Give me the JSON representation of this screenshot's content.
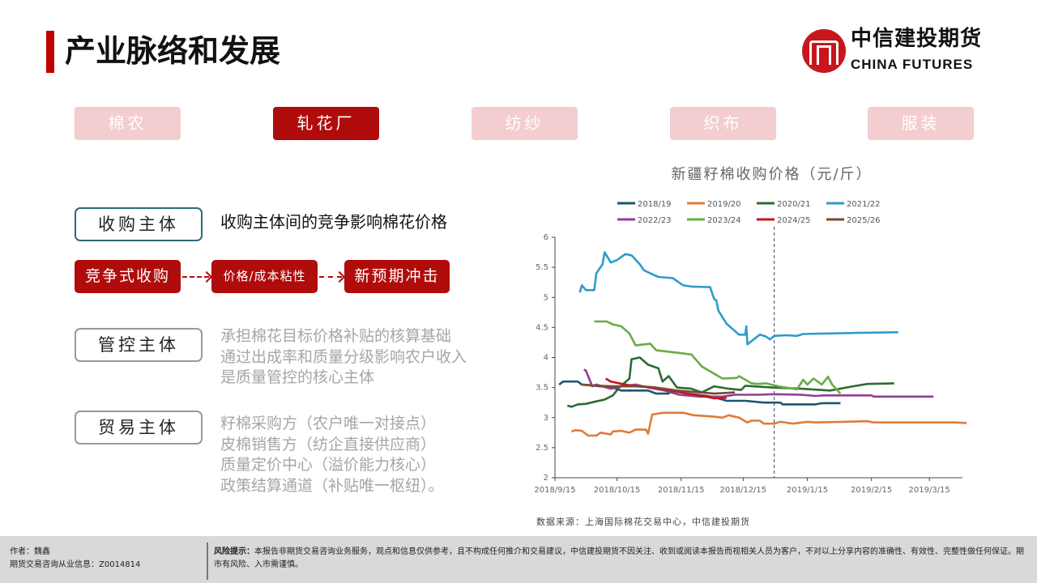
{
  "header": {
    "title": "产业脉络和发展",
    "logo_cn": "中信建投期货",
    "logo_en": "CHINA FUTURES"
  },
  "tabs": [
    {
      "label": "棉农",
      "active": false
    },
    {
      "label": "轧花厂",
      "active": true
    },
    {
      "label": "纺纱",
      "active": false
    },
    {
      "label": "织布",
      "active": false
    },
    {
      "label": "服装",
      "active": false
    }
  ],
  "entities": [
    {
      "label": "收购主体",
      "lines": [
        "收购主体间的竞争影响棉花价格"
      ]
    },
    {
      "label": "管控主体",
      "lines": [
        "承担棉花目标价格补贴的核算基础",
        "通过出成率和质量分级影响农户收入",
        "是质量管控的核心主体"
      ]
    },
    {
      "label": "贸易主体",
      "lines": [
        "籽棉采购方（农户唯一对接点）",
        "皮棉销售方（纺企直接供应商）",
        "质量定价中心（溢价能力核心）",
        "政策结算通道（补贴唯一枢纽）。"
      ]
    }
  ],
  "flow": [
    "竞争式收购",
    "价格/成本粘性",
    "新预期冲击"
  ],
  "colors": {
    "accent": "#b00c0c",
    "tab_inactive": "#f3cdd0"
  },
  "chart_data": {
    "type": "line",
    "title": "新疆籽棉收购价格（元/斤）",
    "xlabel": "",
    "ylabel": "",
    "x_unit": "days since 2018/9/15",
    "xlim": [
      0,
      197
    ],
    "ylim": [
      2,
      6
    ],
    "yticks": [
      "2",
      "2.5",
      "3",
      "3.5",
      "4",
      "4.5",
      "5",
      "5.5",
      "6"
    ],
    "xticks": [
      {
        "day": 0,
        "label": "2018/9/15"
      },
      {
        "day": 30,
        "label": "2018/10/15"
      },
      {
        "day": 61,
        "label": "2018/11/15"
      },
      {
        "day": 91,
        "label": "2018/12/15"
      },
      {
        "day": 122,
        "label": "2019/1/15"
      },
      {
        "day": 153,
        "label": "2019/2/15"
      },
      {
        "day": 181,
        "label": "2019/3/15"
      }
    ],
    "reference_line_day": 106,
    "legend_position": "top",
    "series": [
      {
        "name": "2018/19",
        "color": "#1f5570",
        "points": [
          [
            2,
            3.55
          ],
          [
            4,
            3.6
          ],
          [
            11,
            3.6
          ],
          [
            13,
            3.55
          ],
          [
            28,
            3.5
          ],
          [
            32,
            3.45
          ],
          [
            45,
            3.45
          ],
          [
            49,
            3.4
          ],
          [
            55,
            3.4
          ],
          [
            56,
            3.45
          ],
          [
            64,
            3.4
          ],
          [
            76,
            3.35
          ],
          [
            83,
            3.28
          ],
          [
            92,
            3.28
          ],
          [
            101,
            3.25
          ],
          [
            109,
            3.25
          ],
          [
            110,
            3.22
          ],
          [
            126,
            3.22
          ],
          [
            129,
            3.24
          ],
          [
            138,
            3.24
          ]
        ]
      },
      {
        "name": "2019/20",
        "color": "#e07b39",
        "points": [
          [
            8,
            2.77
          ],
          [
            10,
            2.79
          ],
          [
            13,
            2.78
          ],
          [
            16,
            2.7
          ],
          [
            20,
            2.7
          ],
          [
            22,
            2.75
          ],
          [
            27,
            2.72
          ],
          [
            28,
            2.77
          ],
          [
            32,
            2.78
          ],
          [
            36,
            2.75
          ],
          [
            39,
            2.8
          ],
          [
            44,
            2.8
          ],
          [
            45,
            2.73
          ],
          [
            47,
            3.05
          ],
          [
            52,
            3.08
          ],
          [
            62,
            3.08
          ],
          [
            67,
            3.04
          ],
          [
            76,
            3.02
          ],
          [
            81,
            3.0
          ],
          [
            84,
            3.04
          ],
          [
            89,
            3.0
          ],
          [
            93,
            2.92
          ],
          [
            95,
            2.95
          ],
          [
            99,
            2.95
          ],
          [
            101,
            2.9
          ],
          [
            106,
            2.9
          ],
          [
            109,
            2.93
          ],
          [
            115,
            2.9
          ],
          [
            122,
            2.93
          ],
          [
            126,
            2.92
          ],
          [
            140,
            2.93
          ],
          [
            151,
            2.94
          ],
          [
            154,
            2.92
          ],
          [
            182,
            2.92
          ],
          [
            193,
            2.92
          ],
          [
            199,
            2.91
          ]
        ]
      },
      {
        "name": "2020/21",
        "color": "#2e6b34",
        "points": [
          [
            6,
            3.2
          ],
          [
            8,
            3.18
          ],
          [
            11,
            3.22
          ],
          [
            15,
            3.23
          ],
          [
            20,
            3.27
          ],
          [
            24,
            3.3
          ],
          [
            28,
            3.37
          ],
          [
            31,
            3.5
          ],
          [
            36,
            3.65
          ],
          [
            37,
            3.97
          ],
          [
            41,
            4.0
          ],
          [
            45,
            3.88
          ],
          [
            50,
            3.82
          ],
          [
            52,
            3.6
          ],
          [
            55,
            3.69
          ],
          [
            59,
            3.5
          ],
          [
            66,
            3.48
          ],
          [
            71,
            3.42
          ],
          [
            77,
            3.52
          ],
          [
            84,
            3.48
          ],
          [
            90,
            3.46
          ],
          [
            92,
            3.53
          ],
          [
            105,
            3.5
          ],
          [
            119,
            3.48
          ],
          [
            133,
            3.45
          ],
          [
            144,
            3.52
          ],
          [
            151,
            3.56
          ],
          [
            164,
            3.57
          ]
        ]
      },
      {
        "name": "2021/22",
        "color": "#2e9ccb",
        "points": [
          [
            12,
            5.08
          ],
          [
            13,
            5.2
          ],
          [
            15,
            5.12
          ],
          [
            19,
            5.12
          ],
          [
            20,
            5.4
          ],
          [
            23,
            5.55
          ],
          [
            24,
            5.75
          ],
          [
            27,
            5.58
          ],
          [
            30,
            5.62
          ],
          [
            34,
            5.72
          ],
          [
            37,
            5.7
          ],
          [
            41,
            5.55
          ],
          [
            43,
            5.45
          ],
          [
            48,
            5.37
          ],
          [
            50,
            5.34
          ],
          [
            57,
            5.32
          ],
          [
            62,
            5.2
          ],
          [
            66,
            5.18
          ],
          [
            75,
            5.17
          ],
          [
            77,
            4.97
          ],
          [
            78,
            4.95
          ],
          [
            79,
            4.78
          ],
          [
            83,
            4.56
          ],
          [
            85,
            4.5
          ],
          [
            89,
            4.38
          ],
          [
            92,
            4.38
          ],
          [
            92.5,
            4.52
          ],
          [
            93,
            4.22
          ],
          [
            99,
            4.38
          ],
          [
            102,
            4.35
          ],
          [
            104,
            4.3
          ],
          [
            106,
            4.36
          ],
          [
            112,
            4.37
          ],
          [
            117,
            4.36
          ],
          [
            120,
            4.39
          ],
          [
            133,
            4.4
          ],
          [
            147,
            4.41
          ],
          [
            166,
            4.42
          ]
        ]
      },
      {
        "name": "2022/23",
        "color": "#8e3f97",
        "points": [
          [
            14,
            3.8
          ],
          [
            15,
            3.78
          ],
          [
            18,
            3.52
          ],
          [
            20,
            3.55
          ],
          [
            27,
            3.48
          ],
          [
            32,
            3.52
          ],
          [
            39,
            3.55
          ],
          [
            45,
            3.5
          ],
          [
            53,
            3.45
          ],
          [
            60,
            3.38
          ],
          [
            70,
            3.35
          ],
          [
            81,
            3.35
          ],
          [
            87,
            3.38
          ],
          [
            98,
            3.38
          ],
          [
            106,
            3.39
          ],
          [
            119,
            3.38
          ],
          [
            126,
            3.36
          ],
          [
            130,
            3.37
          ],
          [
            153,
            3.37
          ],
          [
            154,
            3.35
          ],
          [
            183,
            3.35
          ]
        ]
      },
      {
        "name": "2023/24",
        "color": "#6aab45",
        "points": [
          [
            19,
            4.6
          ],
          [
            25,
            4.6
          ],
          [
            28,
            4.55
          ],
          [
            32,
            4.52
          ],
          [
            36,
            4.4
          ],
          [
            39,
            4.2
          ],
          [
            46,
            4.23
          ],
          [
            49,
            4.12
          ],
          [
            59,
            4.08
          ],
          [
            66,
            4.05
          ],
          [
            71,
            3.85
          ],
          [
            76,
            3.75
          ],
          [
            81,
            3.65
          ],
          [
            88,
            3.66
          ],
          [
            89,
            3.69
          ],
          [
            95,
            3.57
          ],
          [
            98,
            3.56
          ],
          [
            102,
            3.57
          ],
          [
            108,
            3.52
          ],
          [
            117,
            3.47
          ],
          [
            120,
            3.63
          ],
          [
            122,
            3.55
          ],
          [
            125,
            3.65
          ],
          [
            129,
            3.55
          ],
          [
            132,
            3.68
          ],
          [
            134,
            3.55
          ],
          [
            138,
            3.4
          ]
        ]
      },
      {
        "name": "2024/25",
        "color": "#c8161d",
        "points": [
          [
            24.5,
            3.65
          ],
          [
            27,
            3.6
          ],
          [
            31,
            3.57
          ],
          [
            39,
            3.52
          ],
          [
            48,
            3.5
          ],
          [
            56,
            3.45
          ],
          [
            64,
            3.4
          ],
          [
            73,
            3.35
          ],
          [
            77,
            3.32
          ],
          [
            83,
            3.33
          ]
        ]
      },
      {
        "name": "2025/26",
        "color": "#7b4a2d",
        "points": [
          [
            13,
            3.55
          ],
          [
            21,
            3.53
          ],
          [
            28,
            3.52
          ],
          [
            42,
            3.52
          ],
          [
            49,
            3.5
          ],
          [
            59,
            3.45
          ],
          [
            70,
            3.42
          ],
          [
            77,
            3.4
          ],
          [
            87,
            3.42
          ]
        ]
      }
    ]
  },
  "source": "数据来源：上海国际棉花交易中心，中信建投期货",
  "footer": {
    "author": "作者：魏鑫",
    "license": "期货交易咨询从业信息：Z0014814",
    "risk_label": "风险提示：",
    "risk_text": "本报告非期货交易咨询业务服务，观点和信息仅供参考，且不构成任何推介和交易建议，中信建投期货不因关注、收到或阅读本报告而视相关人员为客户，不对以上分享内容的准确性、有效性、完整性做任何保证。期市有风险、入市需谨慎。"
  }
}
